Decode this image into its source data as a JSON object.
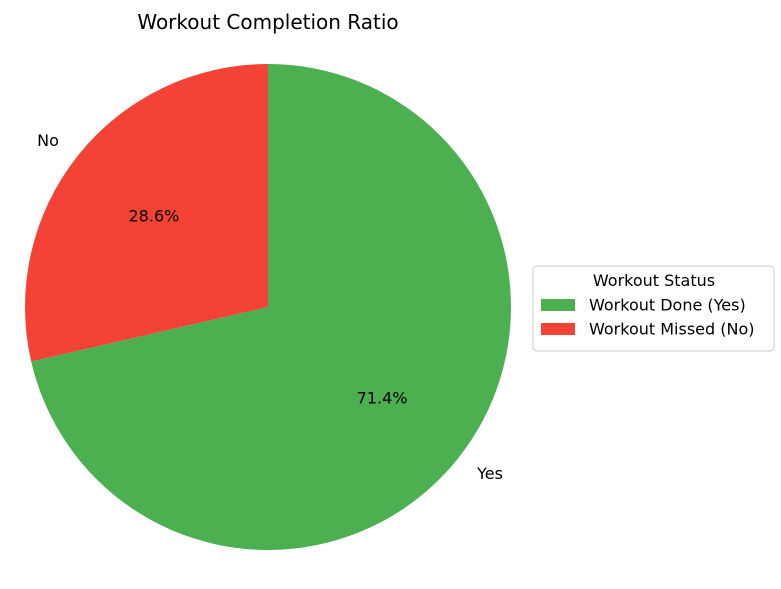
{
  "chart_data": {
    "type": "pie",
    "title": "Workout Completion Ratio",
    "categories": [
      "Yes",
      "No"
    ],
    "values": [
      71.4,
      28.6
    ],
    "percent_labels": [
      "71.4%",
      "28.6%"
    ],
    "colors": [
      "#4caf50",
      "#f44336"
    ],
    "start_angle_deg": 90,
    "direction": "clockwise",
    "legend": {
      "title": "Workout Status",
      "entries": [
        "Workout Done (Yes)",
        "Workout Missed (No)"
      ],
      "placement": "center-right"
    }
  }
}
